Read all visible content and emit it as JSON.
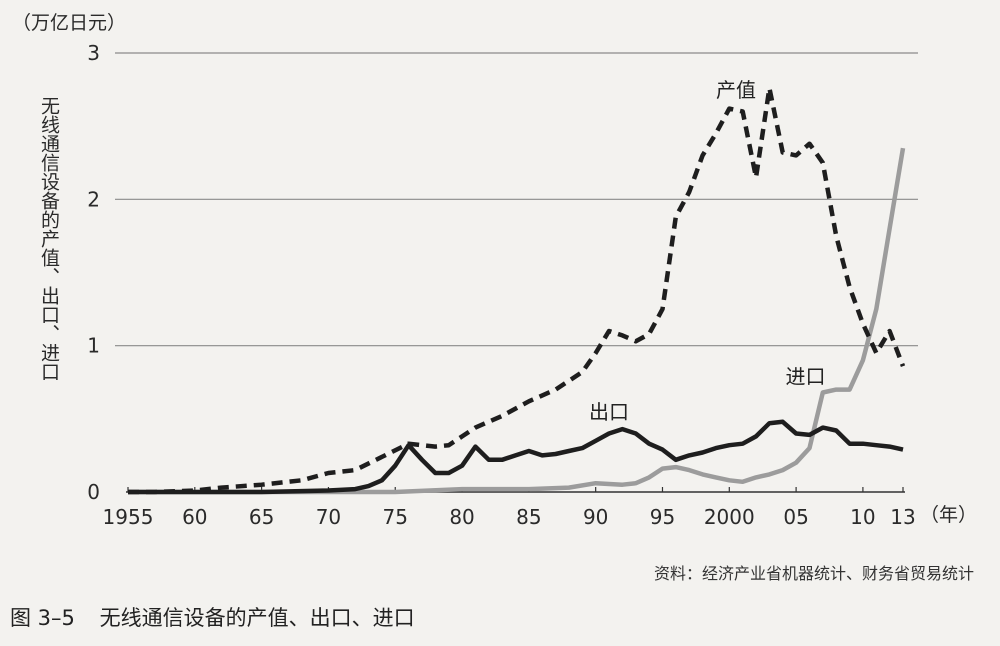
{
  "unit_label": "（万亿日元）",
  "x_unit_label": "（年）",
  "source": "资料：经济产业省机器统计、财务省贸易统计",
  "caption": {
    "number": "图 3–5",
    "title": "无线通信设备的产值、出口、进口"
  },
  "chart_data": {
    "type": "line",
    "ylabel": "无线通信设备的产值、出口、进口",
    "ylim": [
      0,
      3
    ],
    "yticks": [
      0,
      1,
      2,
      3
    ],
    "ytick_labels": [
      "0",
      "1",
      "2",
      "3"
    ],
    "xlim": [
      1955,
      2013
    ],
    "xticks": [
      1955,
      1960,
      1965,
      1970,
      1975,
      1980,
      1985,
      1990,
      1995,
      2000,
      2005,
      2010,
      2013
    ],
    "xtick_labels": [
      "1955",
      "60",
      "65",
      "70",
      "75",
      "80",
      "85",
      "90",
      "95",
      "2000",
      "05",
      "10",
      "13"
    ],
    "grid": "horizontal",
    "series": [
      {
        "name": "产值",
        "style": "dashed",
        "color": "#1e1e1e",
        "label_at": [
          2000.5,
          2.7
        ],
        "x": [
          1955,
          1957,
          1960,
          1962,
          1965,
          1968,
          1970,
          1972,
          1974,
          1976,
          1978,
          1979,
          1980,
          1981,
          1983,
          1985,
          1987,
          1989,
          1990,
          1991,
          1992,
          1993,
          1994,
          1995,
          1996,
          1997,
          1998,
          1999,
          2000,
          2001,
          2002,
          2003,
          2004,
          2005,
          2006,
          2007,
          2008,
          2009,
          2010,
          2011,
          2012,
          2013
        ],
        "values": [
          0.0,
          0.0,
          0.01,
          0.03,
          0.05,
          0.08,
          0.13,
          0.15,
          0.24,
          0.33,
          0.31,
          0.32,
          0.38,
          0.44,
          0.52,
          0.62,
          0.7,
          0.82,
          0.95,
          1.1,
          1.07,
          1.03,
          1.08,
          1.25,
          1.88,
          2.05,
          2.3,
          2.45,
          2.62,
          2.6,
          2.15,
          2.76,
          2.32,
          2.3,
          2.38,
          2.25,
          1.75,
          1.4,
          1.15,
          0.95,
          1.1,
          0.86
        ]
      },
      {
        "name": "出口",
        "style": "solid",
        "color": "#1e1e1e",
        "label_at": [
          1991,
          0.5
        ],
        "x": [
          1955,
          1960,
          1965,
          1970,
          1972,
          1973,
          1974,
          1975,
          1976,
          1977,
          1978,
          1979,
          1980,
          1981,
          1982,
          1983,
          1984,
          1985,
          1986,
          1987,
          1988,
          1989,
          1990,
          1991,
          1992,
          1993,
          1994,
          1995,
          1996,
          1997,
          1998,
          1999,
          2000,
          2001,
          2002,
          2003,
          2004,
          2005,
          2006,
          2007,
          2008,
          2009,
          2010,
          2011,
          2012,
          2013
        ],
        "values": [
          0.0,
          0.0,
          0.0,
          0.01,
          0.02,
          0.04,
          0.08,
          0.18,
          0.32,
          0.22,
          0.13,
          0.13,
          0.18,
          0.31,
          0.22,
          0.22,
          0.25,
          0.28,
          0.25,
          0.26,
          0.28,
          0.3,
          0.35,
          0.4,
          0.43,
          0.4,
          0.33,
          0.29,
          0.22,
          0.25,
          0.27,
          0.3,
          0.32,
          0.33,
          0.38,
          0.47,
          0.48,
          0.4,
          0.39,
          0.44,
          0.42,
          0.33,
          0.33,
          0.32,
          0.31,
          0.29
        ]
      },
      {
        "name": "进口",
        "style": "solid",
        "color": "#9c9c9c",
        "label_at": [
          2005.7,
          0.74
        ],
        "x": [
          1955,
          1960,
          1970,
          1975,
          1980,
          1985,
          1988,
          1990,
          1992,
          1993,
          1994,
          1995,
          1996,
          1997,
          1998,
          1999,
          2000,
          2001,
          2002,
          2003,
          2004,
          2005,
          2006,
          2007,
          2008,
          2009,
          2010,
          2011,
          2012,
          2013
        ],
        "values": [
          0.0,
          0.0,
          0.0,
          0.0,
          0.02,
          0.02,
          0.03,
          0.06,
          0.05,
          0.06,
          0.1,
          0.16,
          0.17,
          0.15,
          0.12,
          0.1,
          0.08,
          0.07,
          0.1,
          0.12,
          0.15,
          0.2,
          0.3,
          0.68,
          0.7,
          0.7,
          0.9,
          1.25,
          1.8,
          2.35
        ]
      }
    ]
  }
}
